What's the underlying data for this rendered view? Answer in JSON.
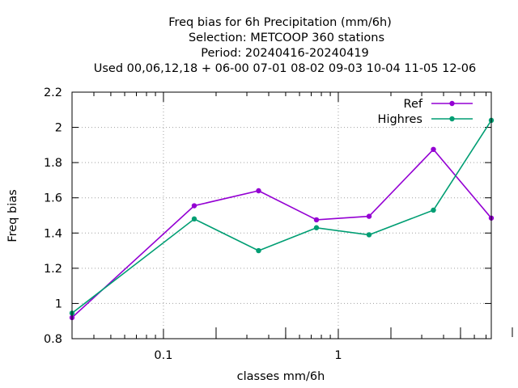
{
  "chart_data": {
    "type": "line",
    "title_lines": [
      "Freq bias  for 6h Precipitation (mm/6h)",
      "Selection: METCOOP    360 stations",
      "Period: 20240416-20240419",
      "Used  00,06,12,18 + 06-00 07-01 08-02 09-03 10-04 11-05 12-06"
    ],
    "xlabel": "classes mm/6h",
    "ylabel": "Freq bias",
    "x_scale": "log",
    "xlim": [
      0.03,
      7.5
    ],
    "ylim": [
      0.8,
      2.2
    ],
    "y_ticks": [
      "0.8",
      "1",
      "1.2",
      "1.4",
      "1.6",
      "1.8",
      "2",
      "2.2"
    ],
    "x_tick_labels": [
      "0.1",
      "1"
    ],
    "grid": true,
    "legend_position": "top-right",
    "x": [
      0.03,
      0.15,
      0.35,
      0.75,
      1.5,
      3.5,
      7.5
    ],
    "series": [
      {
        "name": "Ref",
        "color": "#9400d3",
        "values": [
          0.92,
          1.555,
          1.64,
          1.475,
          1.495,
          1.875,
          1.485
        ]
      },
      {
        "name": "Highres",
        "color": "#009e73",
        "values": [
          0.945,
          1.48,
          1.3,
          1.43,
          1.39,
          1.53,
          2.04
        ]
      }
    ]
  }
}
